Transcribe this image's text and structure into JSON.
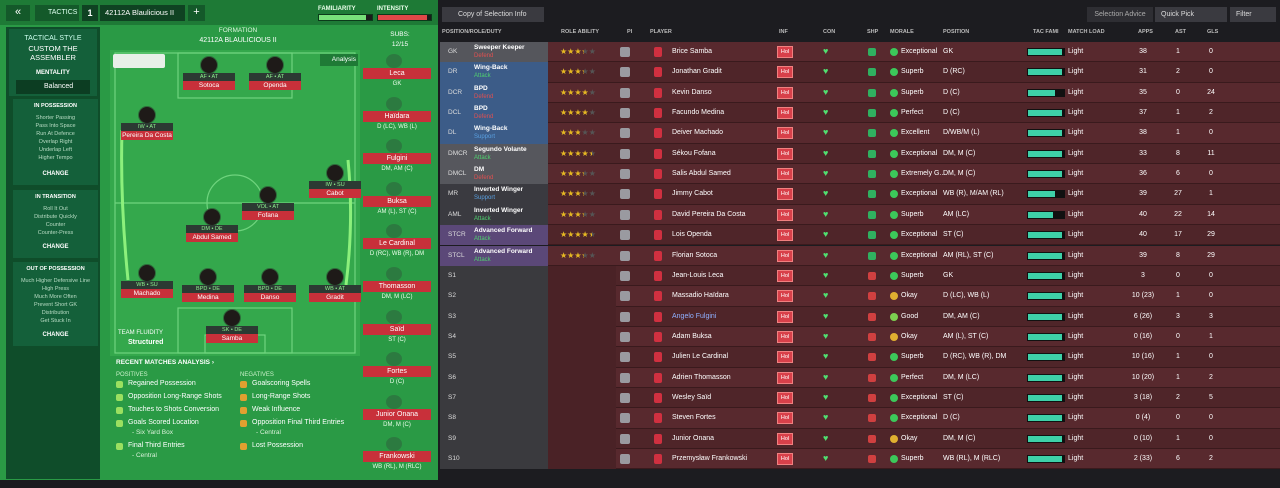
{
  "header": {
    "back": "«",
    "tactics": "TACTICS",
    "slot": "1",
    "tactic_name": "42112A Blaulicious II",
    "add": "+",
    "familiarity_label": "FAMILIARITY",
    "familiarity": 88,
    "intensity_label": "INTENSITY",
    "intensity": 92
  },
  "tactical_style": {
    "label": "TACTICAL STYLE",
    "name": "CUSTOM THE ASSEMBLER",
    "mentality_label": "MENTALITY",
    "mentality": "Balanced"
  },
  "phases": [
    {
      "title": "IN POSSESSION",
      "items": [
        "Shorter Passing",
        "Pass Into Space",
        "Run At Defence",
        "Overlap Right",
        "Underlap Left",
        "Higher Tempo"
      ],
      "button": "CHANGE"
    },
    {
      "title": "IN TRANSITION",
      "items": [
        "Roll It Out",
        "Distribute Quickly",
        "Counter",
        "Counter-Press"
      ],
      "button": "CHANGE"
    },
    {
      "title": "OUT OF POSSESSION",
      "items": [
        "Much Higher Defensive Line",
        "High Press",
        "Much More Often",
        "Prevent Short GK",
        "Distribution",
        "Get Stuck In"
      ],
      "button": "CHANGE"
    }
  ],
  "formation": {
    "label": "FORMATION",
    "name": "42112A BLAULICIOUS II",
    "subs_label": "SUBS:",
    "subs": "12/15",
    "analysis": "Analysis",
    "fluidity_label": "TEAM FLUIDITY",
    "fluidity": "Structured"
  },
  "pitch_players": [
    {
      "role": "AF • AT",
      "name": "Sotoca"
    },
    {
      "role": "AF • AT",
      "name": "Openda"
    },
    {
      "role": "IW • AT",
      "name": "Pereira Da Costa"
    },
    {
      "role": "IW • SU",
      "name": "Cabot"
    },
    {
      "role": "VOL • AT",
      "name": "Fofana"
    },
    {
      "role": "DM • DE",
      "name": "Abdul Samed"
    },
    {
      "role": "WB • SU",
      "name": "Machado"
    },
    {
      "role": "BPD • DE",
      "name": "Medina"
    },
    {
      "role": "BPD • DE",
      "name": "Danso"
    },
    {
      "role": "WB • AT",
      "name": "Gradit"
    },
    {
      "role": "SK • DE",
      "name": "Samba"
    }
  ],
  "subs": [
    {
      "name": "Leca",
      "pos": "GK"
    },
    {
      "name": "Haïdara",
      "pos": "D (LC), WB (L)"
    },
    {
      "name": "Fulgini",
      "pos": "DM, AM (C)"
    },
    {
      "name": "Buksa",
      "pos": "AM (L), ST (C)"
    },
    {
      "name": "Le Cardinal",
      "pos": "D (RC), WB (R), DM"
    },
    {
      "name": "Thomasson",
      "pos": "DM, M (LC)"
    },
    {
      "name": "Saïd",
      "pos": "ST (C)"
    },
    {
      "name": "Fortes",
      "pos": "D (C)"
    },
    {
      "name": "Junior Onana",
      "pos": "DM, M (C)"
    },
    {
      "name": "Frankowski",
      "pos": "WB (RL), M (RLC)"
    }
  ],
  "recent": {
    "title": "RECENT MATCHES ANALYSIS ›",
    "positives_label": "POSITIVES",
    "negatives_label": "NEGATIVES",
    "positives": [
      {
        "text": "Regained Possession"
      },
      {
        "text": "Opposition Long-Range Shots"
      },
      {
        "text": "Touches to Shots Conversion"
      },
      {
        "text": "Goals Scored Location",
        "sub": "- Six Yard Box"
      },
      {
        "text": "Final Third Entries",
        "sub": "- Central"
      }
    ],
    "negatives": [
      {
        "text": "Goalscoring Spells"
      },
      {
        "text": "Long-Range Shots"
      },
      {
        "text": "Weak Influence"
      },
      {
        "text": "Opposition Final Third Entries",
        "sub": "- Central"
      },
      {
        "text": "Lost Possession"
      }
    ]
  },
  "toolbar": {
    "view": "Copy of Selection Info",
    "advice": "Selection Advice",
    "quick_pick": "Quick Pick",
    "filter": "Filter"
  },
  "table": {
    "columns": [
      "POSITION/ROLE/DUTY",
      "ROLE ABILITY",
      "PI",
      "PLAYER",
      "INF",
      "CON",
      "SHP",
      "MORALE",
      "POSITION",
      "TAC FAMI",
      "MATCH LOAD",
      "APPS",
      "AST",
      "GLS"
    ],
    "rows": [
      {
        "slot": "GK",
        "role": "Sweeper Keeper",
        "duty": "Defend",
        "ability": 3,
        "player": "Brice Samba",
        "inf": "Hol",
        "morale": "Exceptional",
        "position": "GK",
        "tac_fam": 95,
        "load": "Light",
        "apps": "38",
        "ast": "1",
        "gls": "0"
      },
      {
        "slot": "DR",
        "role": "Wing-Back",
        "duty": "Attack",
        "ability": 3,
        "player": "Jonathan Gradit",
        "inf": "Hol",
        "morale": "Superb",
        "position": "D (RC)",
        "tac_fam": 95,
        "load": "Light",
        "apps": "31",
        "ast": "2",
        "gls": "0"
      },
      {
        "slot": "DCR",
        "role": "BPD",
        "duty": "Defend",
        "ability": 3.5,
        "player": "Kevin Danso",
        "inf": "Hol",
        "morale": "Superb",
        "position": "D (C)",
        "tac_fam": 75,
        "load": "Light",
        "apps": "35",
        "ast": "0",
        "gls": "24"
      },
      {
        "slot": "DCL",
        "role": "BPD",
        "duty": "Defend",
        "ability": 3.5,
        "player": "Facundo Medina",
        "inf": "Hol",
        "morale": "Perfect",
        "position": "D (C)",
        "tac_fam": 95,
        "load": "Light",
        "apps": "37",
        "ast": "1",
        "gls": "2"
      },
      {
        "slot": "DL",
        "role": "Wing-Back",
        "duty": "Support",
        "ability": 2.5,
        "player": "Deiver Machado",
        "inf": "Hol",
        "morale": "Excellent",
        "position": "D/WB/M (L)",
        "tac_fam": 95,
        "load": "Light",
        "apps": "38",
        "ast": "1",
        "gls": "0"
      },
      {
        "slot": "DMCR",
        "role": "Segundo Volante",
        "duty": "Attack",
        "ability": 4,
        "player": "Sékou Fofana",
        "inf": "Hol",
        "morale": "Exceptional",
        "position": "DM, M (C)",
        "tac_fam": 95,
        "load": "Light",
        "apps": "33",
        "ast": "8",
        "gls": "11"
      },
      {
        "slot": "DMCL",
        "role": "DM",
        "duty": "Defend",
        "ability": 3,
        "player": "Salis Abdul Samed",
        "inf": "Hol",
        "morale": "Extremely G...",
        "position": "DM, M (C)",
        "tac_fam": 95,
        "load": "Light",
        "apps": "36",
        "ast": "6",
        "gls": "0"
      },
      {
        "slot": "MR",
        "role": "Inverted Winger",
        "duty": "Support",
        "ability": 3,
        "player": "Jimmy Cabot",
        "inf": "Hol",
        "morale": "Exceptional",
        "position": "WB (R), M/AM (RL)",
        "tac_fam": 75,
        "load": "Light",
        "apps": "39",
        "ast": "27",
        "gls": "1"
      },
      {
        "slot": "AML",
        "role": "Inverted Winger",
        "duty": "Attack",
        "ability": 3,
        "player": "David Pereira Da Costa",
        "inf": "Hol",
        "morale": "Superb",
        "position": "AM (LC)",
        "tac_fam": 70,
        "load": "Light",
        "apps": "40",
        "ast": "22",
        "gls": "14"
      },
      {
        "slot": "STCR",
        "role": "Advanced Forward",
        "duty": "Attack",
        "ability": 4,
        "player": "Lois Openda",
        "inf": "Hol",
        "morale": "Exceptional",
        "position": "ST (C)",
        "tac_fam": 95,
        "load": "Light",
        "apps": "40",
        "ast": "17",
        "gls": "29"
      },
      {
        "slot": "STCL",
        "role": "Advanced Forward",
        "duty": "Attack",
        "ability": 3,
        "player": "Florian Sotoca",
        "inf": "Hol",
        "morale": "Exceptional",
        "position": "AM (RL), ST (C)",
        "tac_fam": 95,
        "load": "Light",
        "apps": "39",
        "ast": "8",
        "gls": "29"
      },
      {
        "slot": "S1",
        "player": "Jean-Louis Leca",
        "inf": "Hol",
        "morale": "Superb",
        "position": "GK",
        "tac_fam": 95,
        "load": "Light",
        "apps": "3",
        "ast": "0",
        "gls": "0"
      },
      {
        "slot": "S2",
        "player": "Massadio Haïdara",
        "inf": "Hol",
        "morale": "Okay",
        "position": "D (LC), WB (L)",
        "tac_fam": 95,
        "load": "Light",
        "apps": "10 (23)",
        "ast": "1",
        "gls": "0"
      },
      {
        "slot": "S3",
        "player": "Angelo Fulgini",
        "inf": "Hol",
        "morale": "Good",
        "position": "DM, AM (C)",
        "tac_fam": 95,
        "load": "Light",
        "apps": "6 (26)",
        "ast": "3",
        "gls": "3"
      },
      {
        "slot": "S4",
        "player": "Adam Buksa",
        "inf": "Hol",
        "morale": "Okay",
        "position": "AM (L), ST (C)",
        "tac_fam": 95,
        "load": "Light",
        "apps": "0 (16)",
        "ast": "0",
        "gls": "1"
      },
      {
        "slot": "S5",
        "player": "Julien Le Cardinal",
        "inf": "Hol",
        "morale": "Superb",
        "position": "D (RC), WB (R), DM",
        "tac_fam": 95,
        "load": "Light",
        "apps": "10 (16)",
        "ast": "1",
        "gls": "0"
      },
      {
        "slot": "S6",
        "player": "Adrien Thomasson",
        "inf": "Hol",
        "morale": "Perfect",
        "position": "DM, M (LC)",
        "tac_fam": 95,
        "load": "Light",
        "apps": "10 (20)",
        "ast": "1",
        "gls": "2"
      },
      {
        "slot": "S7",
        "player": "Wesley Saïd",
        "inf": "Hol",
        "morale": "Exceptional",
        "position": "ST (C)",
        "tac_fam": 95,
        "load": "Light",
        "apps": "3 (18)",
        "ast": "2",
        "gls": "5"
      },
      {
        "slot": "S8",
        "player": "Steven Fortes",
        "inf": "Hol",
        "morale": "Exceptional",
        "position": "D (C)",
        "tac_fam": 95,
        "load": "Light",
        "apps": "0 (4)",
        "ast": "0",
        "gls": "0"
      },
      {
        "slot": "S9",
        "player": "Junior Onana",
        "inf": "Hol",
        "morale": "Okay",
        "position": "DM, M (C)",
        "tac_fam": 95,
        "load": "Light",
        "apps": "0 (10)",
        "ast": "1",
        "gls": "0"
      },
      {
        "slot": "S10",
        "player": "Przemysław Frankowski",
        "inf": "Hol",
        "morale": "Superb",
        "position": "WB (RL), M (RLC)",
        "tac_fam": 95,
        "load": "Light",
        "apps": "2 (33)",
        "ast": "6",
        "gls": "2"
      }
    ]
  }
}
